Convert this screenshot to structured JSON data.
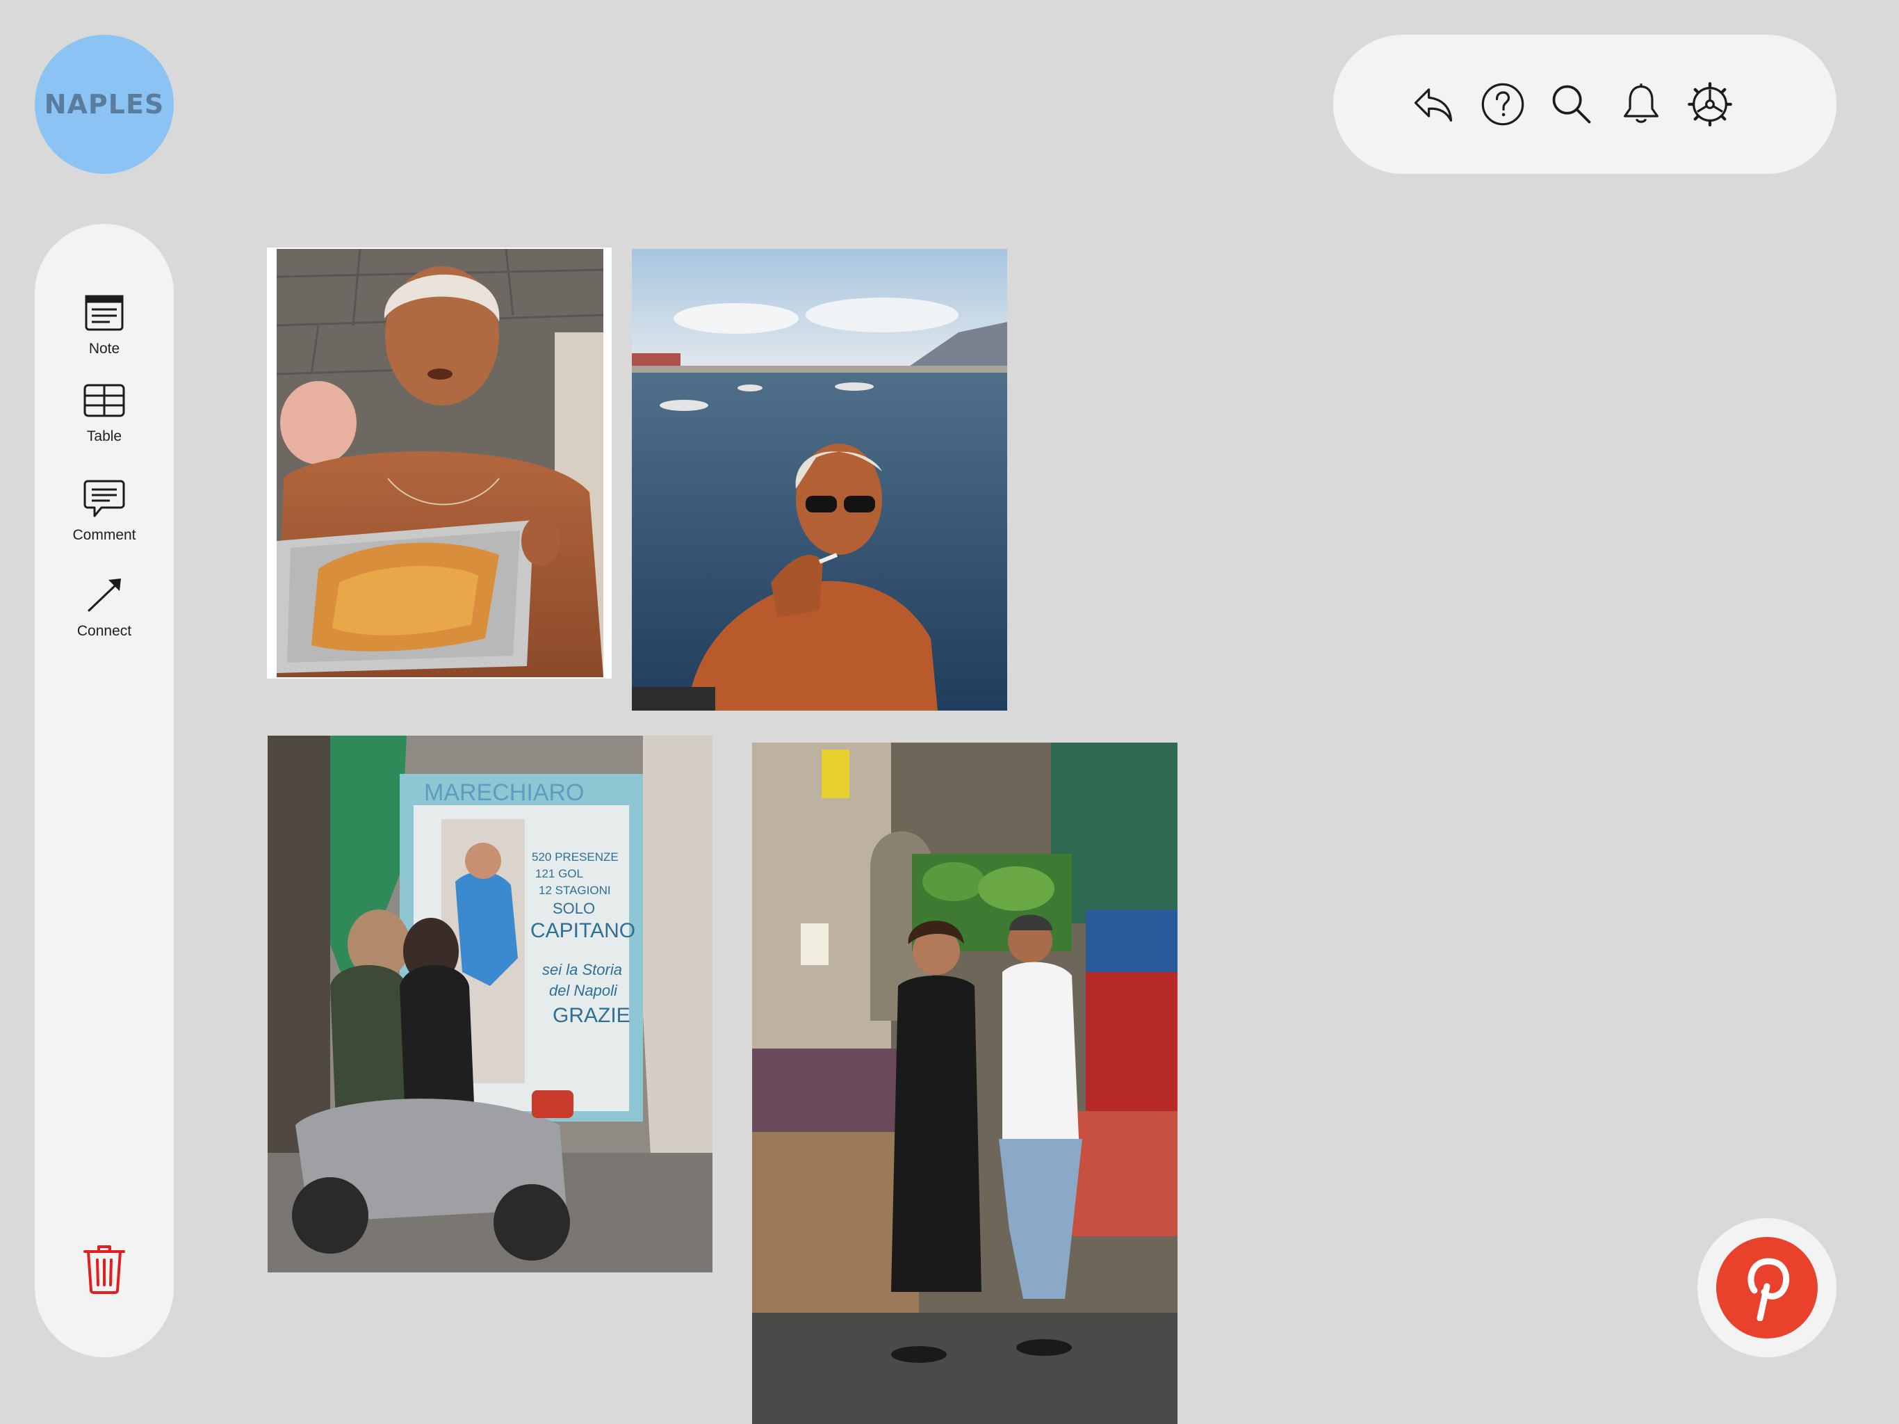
{
  "app": {
    "logo_text": "NAPLES",
    "logo_color": "#8bc3f5"
  },
  "toolbar": {
    "actions": [
      {
        "icon": "undo-icon",
        "name": "undo"
      },
      {
        "icon": "help-icon",
        "name": "help"
      },
      {
        "icon": "search-icon",
        "name": "search"
      },
      {
        "icon": "bell-icon",
        "name": "notifications"
      },
      {
        "icon": "gear-icon",
        "name": "settings"
      }
    ]
  },
  "sidebar": {
    "tools": [
      {
        "label": "Note",
        "icon": "note-icon"
      },
      {
        "label": "Table",
        "icon": "table-icon"
      },
      {
        "label": "Comment",
        "icon": "comment-icon"
      },
      {
        "label": "Connect",
        "icon": "connect-arrow-icon"
      }
    ],
    "trash_icon": "trash-icon",
    "trash_color": "#e02020"
  },
  "board": {
    "photos": [
      {
        "name": "woman-with-tray-photo"
      },
      {
        "name": "man-smoking-by-sea-photo"
      },
      {
        "name": "marechiaro-mural-scooter-photo",
        "sign_text": [
          "MARECHIARO",
          "520 PRESENZE",
          "121 GOL",
          "12 STAGIONI",
          "SOLO",
          "CAPITANO",
          "sei la Storia",
          "del Napoli",
          "GRAZIE"
        ]
      },
      {
        "name": "couple-dancing-market-photo"
      }
    ]
  },
  "pinterest": {
    "icon": "pinterest-icon",
    "color": "#e8412c"
  }
}
